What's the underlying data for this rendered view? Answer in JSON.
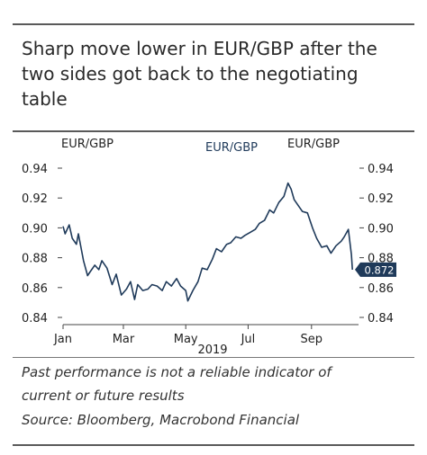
{
  "title": "Sharp move lower in EUR/GBP after the two sides got back to the negotiating table",
  "footnote": {
    "line1": "Past performance is not a reliable indicator of",
    "line2": "current or future results",
    "source": "Source: Bloomberg, Macrobond Financial"
  },
  "colors": {
    "line": "#1f3a5a",
    "badge": "#1f3a5a",
    "rule": "#5a5a5a"
  },
  "chart_data": {
    "type": "line",
    "title": "",
    "left_axis_label": "EUR/GBP",
    "right_axis_label": "EUR/GBP",
    "series": [
      {
        "name": "EUR/GBP",
        "x": [
          "2019-01-01",
          "2019-01-03",
          "2019-01-07",
          "2019-01-10",
          "2019-01-14",
          "2019-01-16",
          "2019-01-21",
          "2019-01-25",
          "2019-01-28",
          "2019-02-01",
          "2019-02-05",
          "2019-02-08",
          "2019-02-13",
          "2019-02-18",
          "2019-02-22",
          "2019-02-27",
          "2019-03-04",
          "2019-03-08",
          "2019-03-12",
          "2019-03-15",
          "2019-03-20",
          "2019-03-25",
          "2019-03-29",
          "2019-04-03",
          "2019-04-08",
          "2019-04-12",
          "2019-04-17",
          "2019-04-22",
          "2019-04-26",
          "2019-05-01",
          "2019-05-03",
          "2019-05-08",
          "2019-05-13",
          "2019-05-17",
          "2019-05-22",
          "2019-05-27",
          "2019-05-31",
          "2019-06-05",
          "2019-06-10",
          "2019-06-14",
          "2019-06-19",
          "2019-06-24",
          "2019-06-28",
          "2019-07-03",
          "2019-07-08",
          "2019-07-12",
          "2019-07-17",
          "2019-07-22",
          "2019-07-26",
          "2019-07-31",
          "2019-08-05",
          "2019-08-09",
          "2019-08-12",
          "2019-08-15",
          "2019-08-20",
          "2019-08-23",
          "2019-08-28",
          "2019-09-02",
          "2019-09-06",
          "2019-09-11",
          "2019-09-16",
          "2019-09-20",
          "2019-09-25",
          "2019-09-30",
          "2019-10-03",
          "2019-10-07",
          "2019-10-10",
          "2019-10-11"
        ],
        "values": [
          0.901,
          0.896,
          0.902,
          0.893,
          0.889,
          0.896,
          0.878,
          0.868,
          0.871,
          0.875,
          0.872,
          0.878,
          0.873,
          0.862,
          0.869,
          0.855,
          0.859,
          0.864,
          0.852,
          0.862,
          0.858,
          0.859,
          0.862,
          0.861,
          0.858,
          0.864,
          0.861,
          0.866,
          0.861,
          0.858,
          0.851,
          0.858,
          0.864,
          0.873,
          0.872,
          0.879,
          0.886,
          0.884,
          0.889,
          0.89,
          0.894,
          0.893,
          0.895,
          0.897,
          0.899,
          0.903,
          0.905,
          0.912,
          0.91,
          0.917,
          0.921,
          0.93,
          0.926,
          0.919,
          0.914,
          0.911,
          0.91,
          0.9,
          0.893,
          0.887,
          0.888,
          0.883,
          0.888,
          0.891,
          0.894,
          0.899,
          0.882,
          0.872
        ]
      }
    ],
    "last_value_label": "0.872",
    "x_ticks": [
      "Jan",
      "Mar",
      "May",
      "Jul",
      "Sep"
    ],
    "x_tick_dates": [
      "2019-01-01",
      "2019-03-01",
      "2019-05-01",
      "2019-07-01",
      "2019-09-01"
    ],
    "x_label": "2019",
    "x_range": [
      "2019-01-01",
      "2019-10-17"
    ],
    "ylim": [
      0.84,
      0.94
    ],
    "y_ticks": [
      "0.94",
      "0.92",
      "0.90",
      "0.88",
      "0.86",
      "0.84"
    ],
    "grid": false,
    "legend": "none"
  }
}
